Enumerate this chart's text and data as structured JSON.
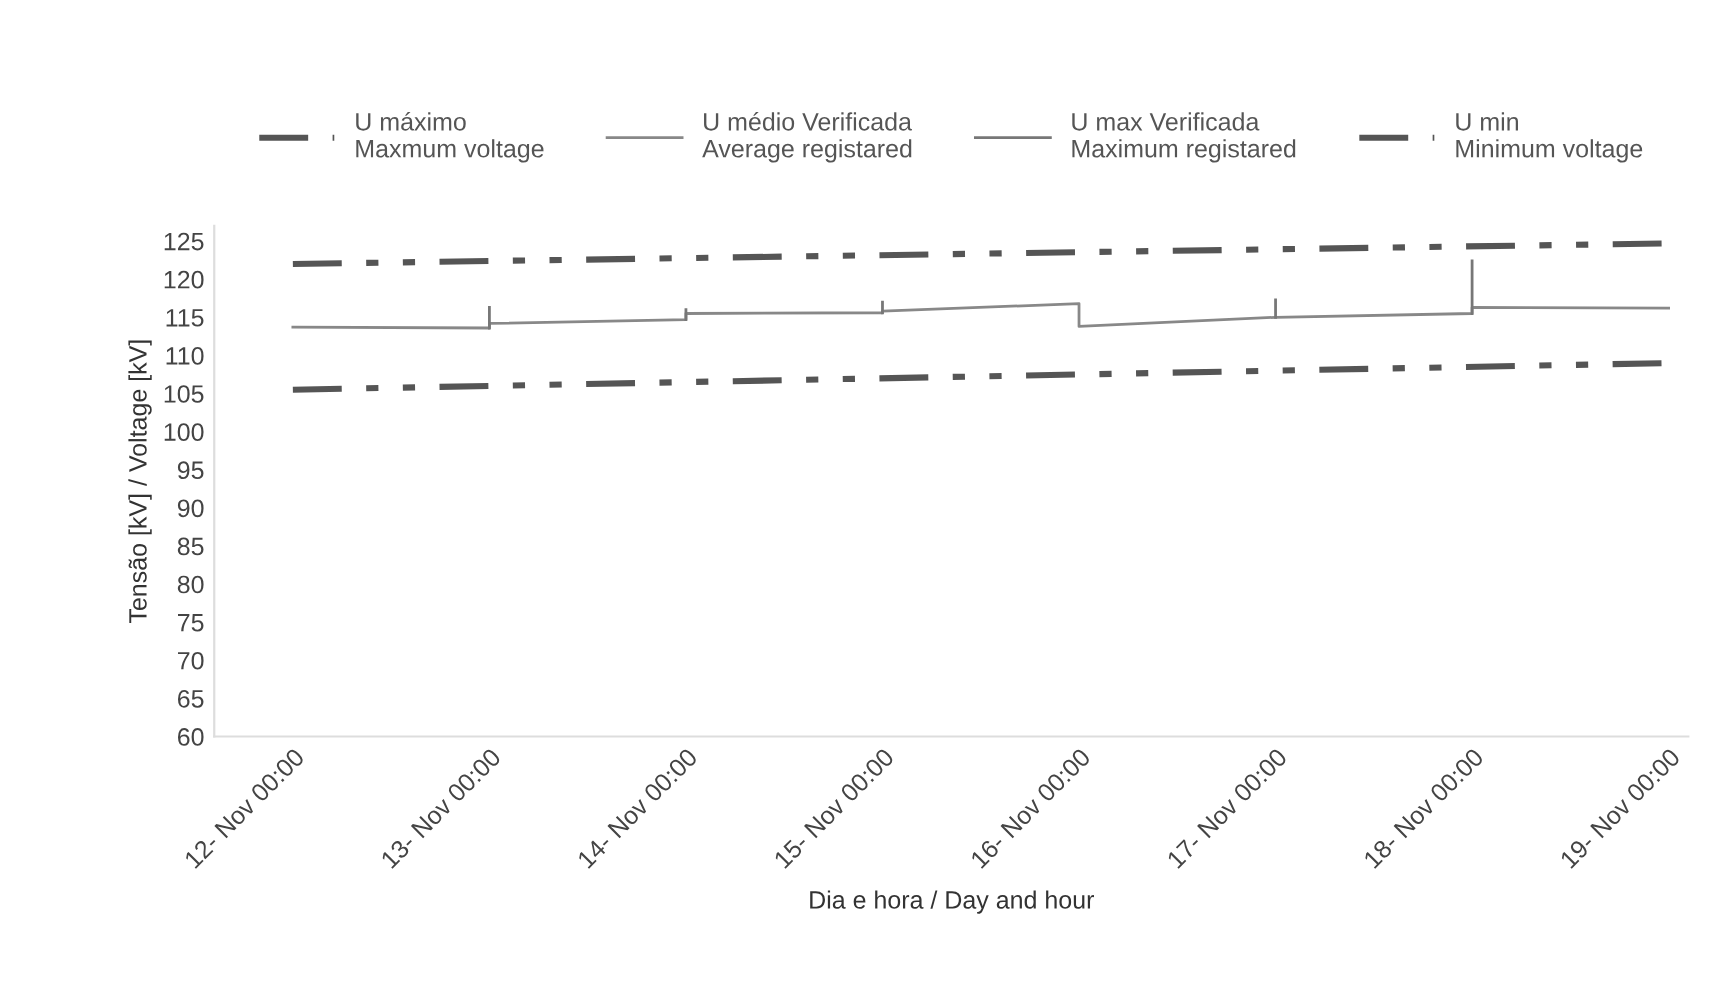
{
  "chart_data": {
    "type": "line",
    "xlabel": "Dia e hora / Day and hour",
    "ylabel": "Tensão [kV] / Voltage [kV]",
    "categories": [
      "12- Nov 00:00",
      "13- Nov 00:00",
      "14- Nov 00:00",
      "15- Nov 00:00",
      "16- Nov 00:00",
      "17- Nov 00:00",
      "18- Nov 00:00",
      "19- Nov 00:00"
    ],
    "ylim": [
      60,
      127
    ],
    "yticks": [
      60,
      65,
      70,
      75,
      80,
      85,
      90,
      95,
      100,
      105,
      110,
      115,
      120,
      125
    ],
    "legend": "top",
    "series": [
      {
        "name": "U máximo\nMaxmum voltage",
        "color": "#555555",
        "line_style": "dashed",
        "x": [
          "12- Nov 00:00",
          "19- Nov 00:00"
        ],
        "values": [
          122,
          124.7
        ]
      },
      {
        "name": "U médio Verificada\nAverage registared",
        "color": "#888888",
        "line_style": "solid",
        "x": [
          "12- Nov 00:00",
          "13- Nov 00:00",
          "13- Nov 00:00",
          "14- Nov 00:00",
          "14- Nov 00:00",
          "15- Nov 00:00",
          "15- Nov 00:00",
          "16- Nov 00:00",
          "16- Nov 00:00",
          "17- Nov 00:00",
          "17- Nov 00:00",
          "18- Nov 00:00",
          "18- Nov 00:00",
          "19- Nov 00:00"
        ],
        "values": [
          113.7,
          113.6,
          114.2,
          114.7,
          115.5,
          115.6,
          115.8,
          116.8,
          113.8,
          115.0,
          115.0,
          115.5,
          116.3,
          116.2
        ]
      },
      {
        "name": "U max Verificada\nMaximum registared",
        "color": "#777777",
        "line_style": "solid",
        "x": [
          "13- Nov 00:00",
          "13- Nov 00:00",
          "13- Nov 00:00",
          "14- Nov 00:00",
          "14- Nov 00:00",
          "14- Nov 00:00",
          "15- Nov 00:00",
          "15- Nov 00:00",
          "15- Nov 00:00",
          "17- Nov 00:00",
          "17- Nov 00:00",
          "17- Nov 00:00",
          "18- Nov 00:00",
          "18- Nov 00:00",
          "18- Nov 00:00"
        ],
        "values": [
          113.6,
          116.3,
          null,
          114.7,
          116,
          null,
          115.6,
          117,
          null,
          115,
          117.3,
          null,
          115.5,
          122.4,
          null
        ]
      },
      {
        "name": "U min\nMinimum voltage",
        "color": "#555555",
        "line_style": "dashed",
        "x": [
          "12- Nov 00:00",
          "19- Nov 00:00"
        ],
        "values": [
          105.5,
          109
        ]
      }
    ]
  }
}
